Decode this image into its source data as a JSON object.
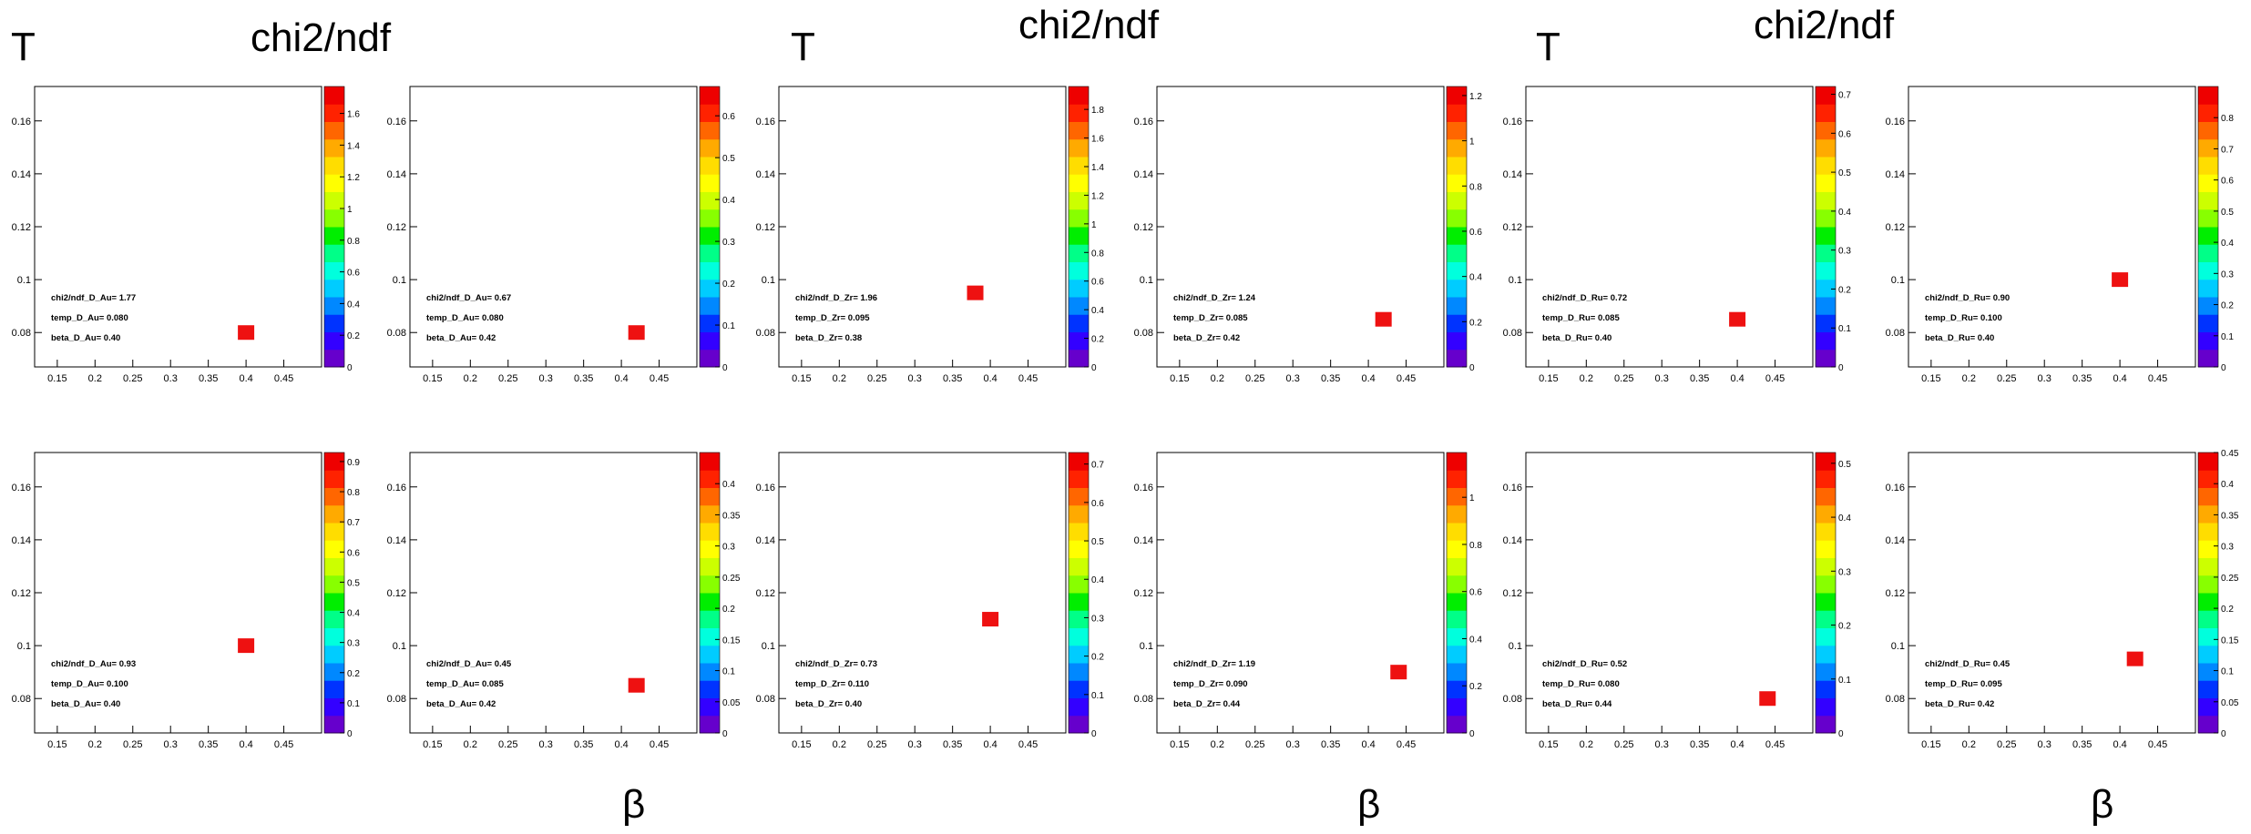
{
  "figure": {
    "groups": [
      {
        "t_label": "T",
        "chi_label": "chi2/ndf",
        "beta_label": ""
      },
      {
        "t_label": "T",
        "chi_label": "chi2/ndf",
        "beta_label": "β"
      },
      {
        "t_label": "T",
        "chi_label": "chi2/ndf",
        "beta_label": "β"
      }
    ],
    "colors": {
      "marker": "#ee1111",
      "palette": [
        "#6600cc",
        "#3300ff",
        "#0033ff",
        "#0088ff",
        "#00ccff",
        "#00ffdd",
        "#00ff88",
        "#00ee00",
        "#88ff00",
        "#ccff00",
        "#ffff00",
        "#ffdd00",
        "#ffaa00",
        "#ff6600",
        "#ff2200",
        "#ee0000"
      ]
    }
  },
  "chart_data": [
    {
      "type": "heatmap",
      "x": [
        0.4
      ],
      "y": [
        0.08
      ],
      "chi2": 1.77,
      "xlim": [
        0.12,
        0.5
      ],
      "ylim": [
        0.067,
        0.173
      ],
      "xticks": [
        "0.15",
        "0.2",
        "0.25",
        "0.3",
        "0.35",
        "0.4",
        "0.45"
      ],
      "yticks": [
        "0.08",
        "0.1",
        "0.12",
        "0.14",
        "0.16"
      ],
      "zticks": [
        "0",
        "0.2",
        "0.4",
        "0.6",
        "0.8",
        "1",
        "1.2",
        "1.4",
        "1.6"
      ],
      "zmax": 1.77,
      "stats": [
        "chi2/ndf_D_Au= 1.77",
        "temp_D_Au= 0.080",
        "beta_D_Au= 0.40"
      ]
    },
    {
      "type": "heatmap",
      "x": [
        0.42
      ],
      "y": [
        0.08
      ],
      "chi2": 0.67,
      "xlim": [
        0.12,
        0.5
      ],
      "ylim": [
        0.067,
        0.173
      ],
      "xticks": [
        "0.15",
        "0.2",
        "0.25",
        "0.3",
        "0.35",
        "0.4",
        "0.45"
      ],
      "yticks": [
        "0.08",
        "0.1",
        "0.12",
        "0.14",
        "0.16"
      ],
      "zticks": [
        "0",
        "0.1",
        "0.2",
        "0.3",
        "0.4",
        "0.5",
        "0.6"
      ],
      "zmax": 0.67,
      "stats": [
        "chi2/ndf_D_Au= 0.67",
        "temp_D_Au= 0.080",
        "beta_D_Au= 0.42"
      ]
    },
    {
      "type": "heatmap",
      "x": [
        0.38
      ],
      "y": [
        0.095
      ],
      "chi2": 1.96,
      "xlim": [
        0.12,
        0.5
      ],
      "ylim": [
        0.067,
        0.173
      ],
      "xticks": [
        "0.15",
        "0.2",
        "0.25",
        "0.3",
        "0.35",
        "0.4",
        "0.45"
      ],
      "yticks": [
        "0.08",
        "0.1",
        "0.12",
        "0.14",
        "0.16"
      ],
      "zticks": [
        "0",
        "0.2",
        "0.4",
        "0.6",
        "0.8",
        "1",
        "1.2",
        "1.4",
        "1.6",
        "1.8"
      ],
      "zmax": 1.96,
      "stats": [
        "chi2/ndf_D_Zr= 1.96",
        "temp_D_Zr= 0.095",
        "beta_D_Zr= 0.38"
      ]
    },
    {
      "type": "heatmap",
      "x": [
        0.42
      ],
      "y": [
        0.085
      ],
      "chi2": 1.24,
      "xlim": [
        0.12,
        0.5
      ],
      "ylim": [
        0.067,
        0.173
      ],
      "xticks": [
        "0.15",
        "0.2",
        "0.25",
        "0.3",
        "0.35",
        "0.4",
        "0.45"
      ],
      "yticks": [
        "0.08",
        "0.1",
        "0.12",
        "0.14",
        "0.16"
      ],
      "zticks": [
        "0",
        "0.2",
        "0.4",
        "0.6",
        "0.8",
        "1",
        "1.2"
      ],
      "zmax": 1.24,
      "stats": [
        "chi2/ndf_D_Zr= 1.24",
        "temp_D_Zr= 0.085",
        "beta_D_Zr= 0.42"
      ]
    },
    {
      "type": "heatmap",
      "x": [
        0.4
      ],
      "y": [
        0.085
      ],
      "chi2": 0.72,
      "xlim": [
        0.12,
        0.5
      ],
      "ylim": [
        0.067,
        0.173
      ],
      "xticks": [
        "0.15",
        "0.2",
        "0.25",
        "0.3",
        "0.35",
        "0.4",
        "0.45"
      ],
      "yticks": [
        "0.08",
        "0.1",
        "0.12",
        "0.14",
        "0.16"
      ],
      "zticks": [
        "0",
        "0.1",
        "0.2",
        "0.3",
        "0.4",
        "0.5",
        "0.6",
        "0.7"
      ],
      "zmax": 0.72,
      "stats": [
        "chi2/ndf_D_Ru= 0.72",
        "temp_D_Ru= 0.085",
        "beta_D_Ru= 0.40"
      ]
    },
    {
      "type": "heatmap",
      "x": [
        0.4
      ],
      "y": [
        0.1
      ],
      "chi2": 0.9,
      "xlim": [
        0.12,
        0.5
      ],
      "ylim": [
        0.067,
        0.173
      ],
      "xticks": [
        "0.15",
        "0.2",
        "0.25",
        "0.3",
        "0.35",
        "0.4",
        "0.45"
      ],
      "yticks": [
        "0.08",
        "0.1",
        "0.12",
        "0.14",
        "0.16"
      ],
      "zticks": [
        "0",
        "0.1",
        "0.2",
        "0.3",
        "0.4",
        "0.5",
        "0.6",
        "0.7",
        "0.8"
      ],
      "zmax": 0.9,
      "stats": [
        "chi2/ndf_D_Ru= 0.90",
        "temp_D_Ru= 0.100",
        "beta_D_Ru= 0.40"
      ]
    },
    {
      "type": "heatmap",
      "x": [
        0.4
      ],
      "y": [
        0.1
      ],
      "chi2": 0.93,
      "xlim": [
        0.12,
        0.5
      ],
      "ylim": [
        0.067,
        0.173
      ],
      "xticks": [
        "0.15",
        "0.2",
        "0.25",
        "0.3",
        "0.35",
        "0.4",
        "0.45"
      ],
      "yticks": [
        "0.08",
        "0.1",
        "0.12",
        "0.14",
        "0.16"
      ],
      "zticks": [
        "0",
        "0.1",
        "0.2",
        "0.3",
        "0.4",
        "0.5",
        "0.6",
        "0.7",
        "0.8",
        "0.9"
      ],
      "zmax": 0.93,
      "stats": [
        "chi2/ndf_D_Au= 0.93",
        "temp_D_Au= 0.100",
        "beta_D_Au= 0.40"
      ]
    },
    {
      "type": "heatmap",
      "x": [
        0.42
      ],
      "y": [
        0.085
      ],
      "chi2": 0.45,
      "xlim": [
        0.12,
        0.5
      ],
      "ylim": [
        0.067,
        0.173
      ],
      "xticks": [
        "0.15",
        "0.2",
        "0.25",
        "0.3",
        "0.35",
        "0.4",
        "0.45"
      ],
      "yticks": [
        "0.08",
        "0.1",
        "0.12",
        "0.14",
        "0.16"
      ],
      "zticks": [
        "0",
        "0.05",
        "0.1",
        "0.15",
        "0.2",
        "0.25",
        "0.3",
        "0.35",
        "0.4"
      ],
      "zmax": 0.45,
      "stats": [
        "chi2/ndf_D_Au= 0.45",
        "temp_D_Au= 0.085",
        "beta_D_Au= 0.42"
      ]
    },
    {
      "type": "heatmap",
      "x": [
        0.4
      ],
      "y": [
        0.11
      ],
      "chi2": 0.73,
      "xlim": [
        0.12,
        0.5
      ],
      "ylim": [
        0.067,
        0.173
      ],
      "xticks": [
        "0.15",
        "0.2",
        "0.25",
        "0.3",
        "0.35",
        "0.4",
        "0.45"
      ],
      "yticks": [
        "0.08",
        "0.1",
        "0.12",
        "0.14",
        "0.16"
      ],
      "zticks": [
        "0",
        "0.1",
        "0.2",
        "0.3",
        "0.4",
        "0.5",
        "0.6",
        "0.7"
      ],
      "zmax": 0.73,
      "stats": [
        "chi2/ndf_D_Zr= 0.73",
        "temp_D_Zr= 0.110",
        "beta_D_Zr= 0.40"
      ]
    },
    {
      "type": "heatmap",
      "x": [
        0.44
      ],
      "y": [
        0.09
      ],
      "chi2": 1.19,
      "xlim": [
        0.12,
        0.5
      ],
      "ylim": [
        0.067,
        0.173
      ],
      "xticks": [
        "0.15",
        "0.2",
        "0.25",
        "0.3",
        "0.35",
        "0.4",
        "0.45"
      ],
      "yticks": [
        "0.08",
        "0.1",
        "0.12",
        "0.14",
        "0.16"
      ],
      "zticks": [
        "0",
        "0.2",
        "0.4",
        "0.6",
        "0.8",
        "1"
      ],
      "zmax": 1.19,
      "stats": [
        "chi2/ndf_D_Zr= 1.19",
        "temp_D_Zr= 0.090",
        "beta_D_Zr= 0.44"
      ]
    },
    {
      "type": "heatmap",
      "x": [
        0.44
      ],
      "y": [
        0.08
      ],
      "chi2": 0.52,
      "xlim": [
        0.12,
        0.5
      ],
      "ylim": [
        0.067,
        0.173
      ],
      "xticks": [
        "0.15",
        "0.2",
        "0.25",
        "0.3",
        "0.35",
        "0.4",
        "0.45"
      ],
      "yticks": [
        "0.08",
        "0.1",
        "0.12",
        "0.14",
        "0.16"
      ],
      "zticks": [
        "0",
        "0.1",
        "0.2",
        "0.3",
        "0.4",
        "0.5"
      ],
      "zmax": 0.52,
      "stats": [
        "chi2/ndf_D_Ru= 0.52",
        "temp_D_Ru= 0.080",
        "beta_D_Ru= 0.44"
      ]
    },
    {
      "type": "heatmap",
      "x": [
        0.42
      ],
      "y": [
        0.095
      ],
      "chi2": 0.45,
      "xlim": [
        0.12,
        0.5
      ],
      "ylim": [
        0.067,
        0.173
      ],
      "xticks": [
        "0.15",
        "0.2",
        "0.25",
        "0.3",
        "0.35",
        "0.4",
        "0.45"
      ],
      "yticks": [
        "0.08",
        "0.1",
        "0.12",
        "0.14",
        "0.16"
      ],
      "zticks": [
        "0",
        "0.05",
        "0.1",
        "0.15",
        "0.2",
        "0.25",
        "0.3",
        "0.35",
        "0.4",
        "0.45"
      ],
      "zmax": 0.45,
      "stats": [
        "chi2/ndf_D_Ru= 0.45",
        "temp_D_Ru= 0.095",
        "beta_D_Ru= 0.42"
      ]
    }
  ]
}
